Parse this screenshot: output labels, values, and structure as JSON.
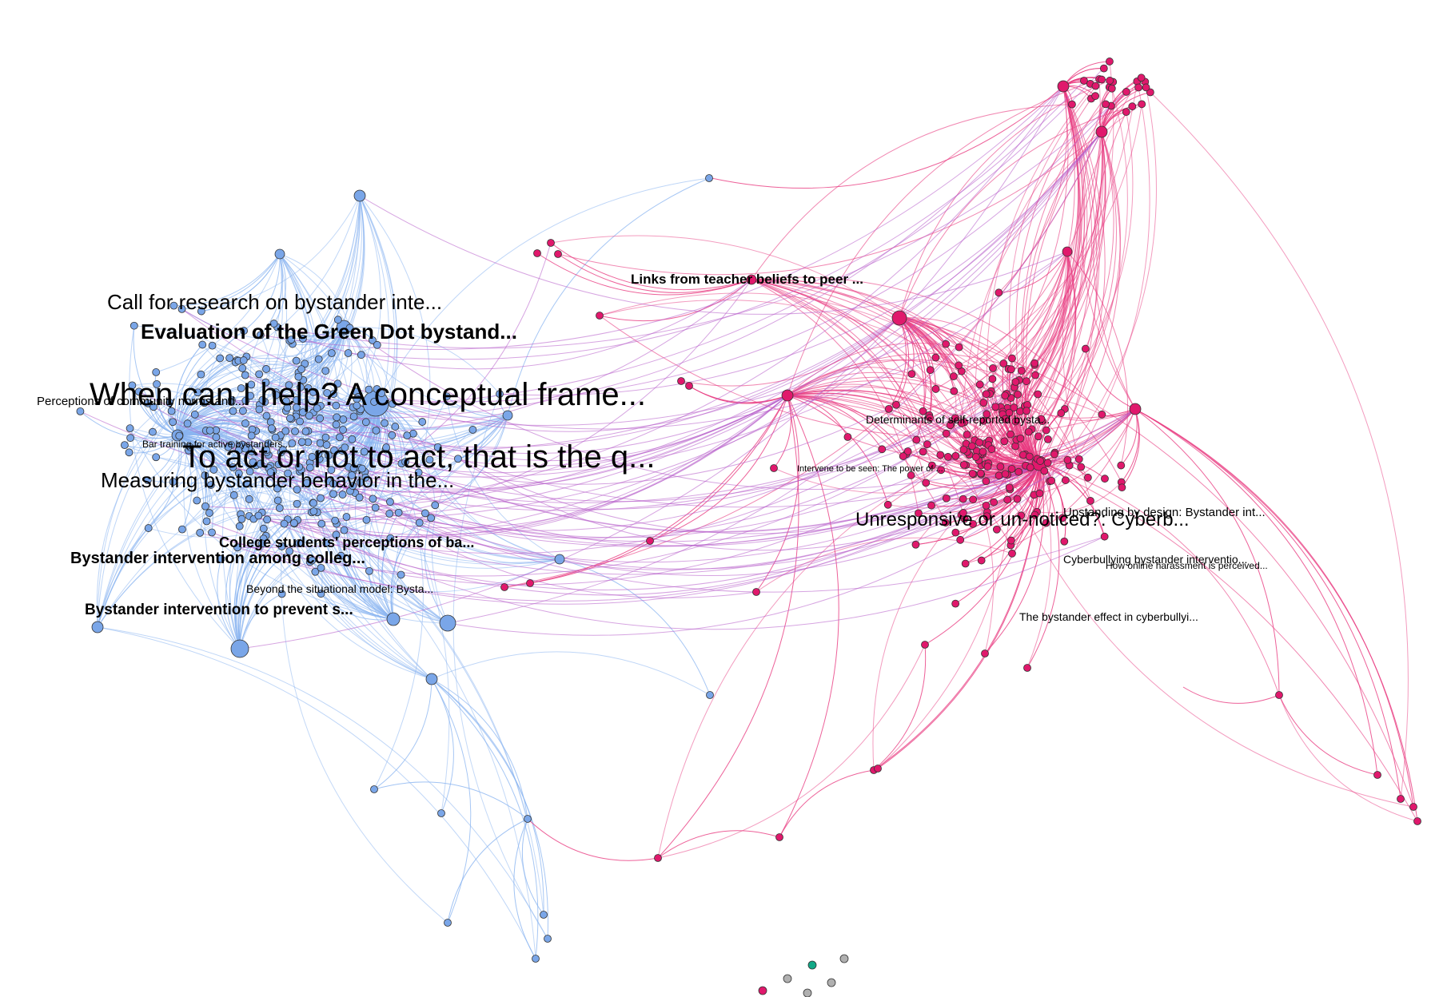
{
  "colors": {
    "cluster_a": "#7aa6e8",
    "cluster_a_edge": "#8ab4f0",
    "cluster_b": "#e0186c",
    "cluster_b_edge": "#e8397f",
    "bridge_edge": "#b45ac8",
    "isolate_gray": "#b0b0b0",
    "isolate_green": "#11a987",
    "isolate_pink": "#e0186c",
    "node_stroke": "#333333"
  },
  "labels": [
    {
      "text": "When can I help? A conceptual frame...",
      "weight": "normal",
      "size": "xl"
    },
    {
      "text": "To act or not to act, that is the q...",
      "weight": "normal",
      "size": "xl"
    },
    {
      "text": "Call for research on bystander inte...",
      "weight": "normal",
      "size": "l"
    },
    {
      "text": "Evaluation of the Green Dot bystand...",
      "weight": "bold",
      "size": "l"
    },
    {
      "text": "Measuring bystander behavior in the...",
      "weight": "normal",
      "size": "l"
    },
    {
      "text": "Perceptions of community norms and...",
      "weight": "normal",
      "size": "s"
    },
    {
      "text": "Bar training for active bystanders...",
      "weight": "normal",
      "size": "xs"
    },
    {
      "text": "College students' perceptions of ba...",
      "weight": "bold",
      "size": "m"
    },
    {
      "text": "Bystander intervention among colleg...",
      "weight": "bold",
      "size": "m"
    },
    {
      "text": "Beyond the situational model: Bysta...",
      "weight": "normal",
      "size": "s"
    },
    {
      "text": "Bystander intervention to prevent s...",
      "weight": "bold",
      "size": "m"
    },
    {
      "text": "Links from teacher beliefs to peer ...",
      "weight": "bold",
      "size": "m"
    },
    {
      "text": "Determinants of self-reported bysta...",
      "weight": "normal",
      "size": "s"
    },
    {
      "text": "Intervene to be seen: The power of ...",
      "weight": "normal",
      "size": "xs"
    },
    {
      "text": "Unresponsive or un-noticed?: Cyberb...",
      "weight": "normal",
      "size": "l"
    },
    {
      "text": "Upstanding by design: Bystander int...",
      "weight": "normal",
      "size": "s"
    },
    {
      "text": "Cyberbullying bystander interventio...",
      "weight": "normal",
      "size": "s"
    },
    {
      "text": "How online harassment is perceived...",
      "weight": "normal",
      "size": "xs"
    },
    {
      "text": "The bystander effect in cyberbullyi...",
      "weight": "normal",
      "size": "s"
    }
  ]
}
